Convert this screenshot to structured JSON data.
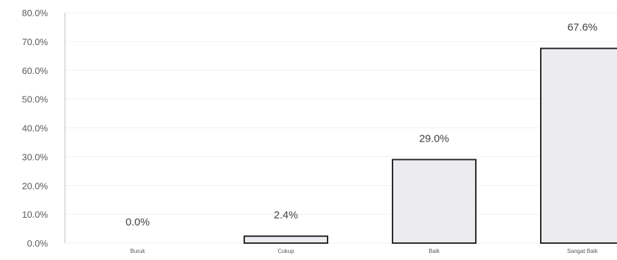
{
  "chart_data": {
    "type": "bar",
    "categories": [
      "Buruk",
      "Cukup",
      "Baik",
      "Sangat Baik"
    ],
    "values": [
      0.0,
      2.4,
      29.0,
      67.6
    ],
    "value_labels": [
      "0.0%",
      "2.4%",
      "29.0%",
      "67.6%"
    ],
    "yticks": [
      "0.0%",
      "10.0%",
      "20.0%",
      "30.0%",
      "40.0%",
      "50.0%",
      "60.0%",
      "70.0%",
      "80.0%"
    ],
    "ylim": [
      0,
      80
    ],
    "grid": true,
    "bar_fill": "#ebebf0",
    "bar_stroke": "#262626"
  }
}
